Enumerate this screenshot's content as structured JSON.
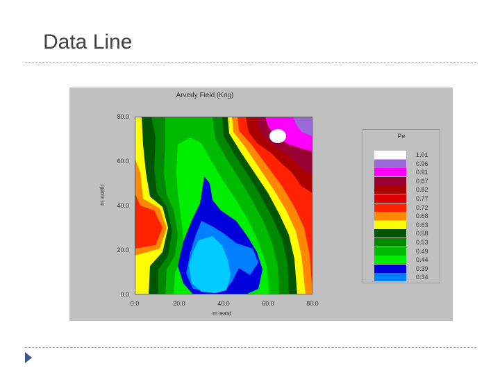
{
  "slide": {
    "title": "Data Line"
  },
  "chart_data": {
    "type": "heatmap",
    "title": "Arvedy Field (Krig)",
    "xlabel": "m east",
    "ylabel": "m north",
    "xlim": [
      0,
      80
    ],
    "ylim": [
      0,
      80
    ],
    "x_ticks": [
      "0.0",
      "20.0",
      "40.0",
      "60.0",
      "80.0"
    ],
    "y_ticks": [
      "0.0",
      "20.0",
      "40.0",
      "60.0",
      "80.0"
    ],
    "legend": {
      "title": "Pe",
      "placement": "right",
      "levels": [
        {
          "label": "1.01",
          "color": "#ffffff"
        },
        {
          "label": "0.96",
          "color": "#9a6bd6"
        },
        {
          "label": "0.91",
          "color": "#ff00ff"
        },
        {
          "label": "0.87",
          "color": "#990033"
        },
        {
          "label": "0.82",
          "color": "#aa0000"
        },
        {
          "label": "0.77",
          "color": "#dd0000"
        },
        {
          "label": "0.72",
          "color": "#ff2200"
        },
        {
          "label": "0.68",
          "color": "#ff8800"
        },
        {
          "label": "0.63",
          "color": "#ffff00"
        },
        {
          "label": "0.58",
          "color": "#005500"
        },
        {
          "label": "0.53",
          "color": "#008800"
        },
        {
          "label": "0.49",
          "color": "#00bb00"
        },
        {
          "label": "0.44",
          "color": "#00ee00"
        },
        {
          "label": "0.39",
          "color": "#0000dd"
        },
        {
          "label": "0.34",
          "color": "#0080ff"
        }
      ]
    },
    "colors": {
      "panel_bg": "#c0c0c0",
      "low_region": "#00ccff"
    }
  }
}
